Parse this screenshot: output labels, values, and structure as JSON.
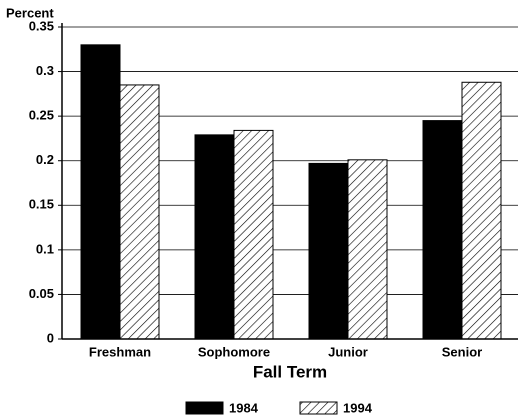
{
  "chart_data": {
    "type": "bar",
    "y_label": "Percent",
    "x_label": "Fall Term",
    "categories": [
      "Freshman",
      "Sophomore",
      "Junior",
      "Senior"
    ],
    "series": [
      {
        "name": "1984",
        "color": "#000000",
        "hatch": false,
        "values": [
          0.33,
          0.229,
          0.197,
          0.245
        ]
      },
      {
        "name": "1994",
        "color": "#000000",
        "hatch": true,
        "values": [
          0.285,
          0.234,
          0.201,
          0.288
        ]
      }
    ],
    "ylim": [
      0,
      0.35
    ],
    "yticks": [
      0,
      0.05,
      0.1,
      0.15,
      0.2,
      0.25,
      0.3,
      0.35
    ],
    "grid": true,
    "legend": "bottom"
  }
}
